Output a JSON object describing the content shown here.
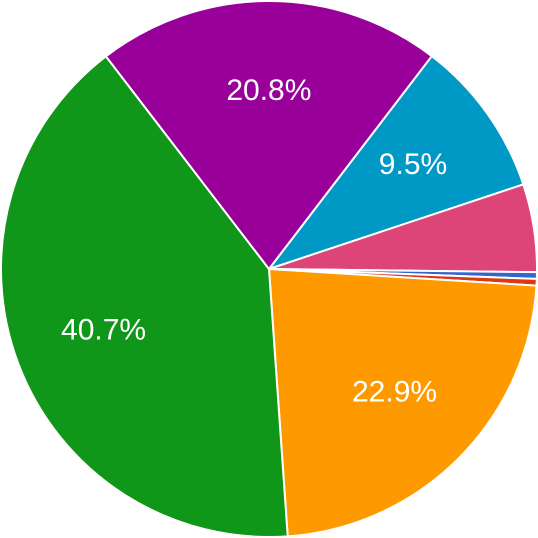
{
  "chart_data": {
    "type": "pie",
    "categories": [
      null,
      null,
      null,
      null,
      null,
      null,
      null
    ],
    "values": [
      9.5,
      5.3,
      0.4,
      0.4,
      22.9,
      40.7,
      20.8
    ],
    "value_labels": [
      "9.5%",
      null,
      null,
      null,
      "22.9%",
      "40.7%",
      "20.8%"
    ],
    "colors": [
      "#0099c6",
      "#dd4477",
      "#3366cc",
      "#dc3912",
      "#ff9900",
      "#109618",
      "#990099"
    ]
  }
}
